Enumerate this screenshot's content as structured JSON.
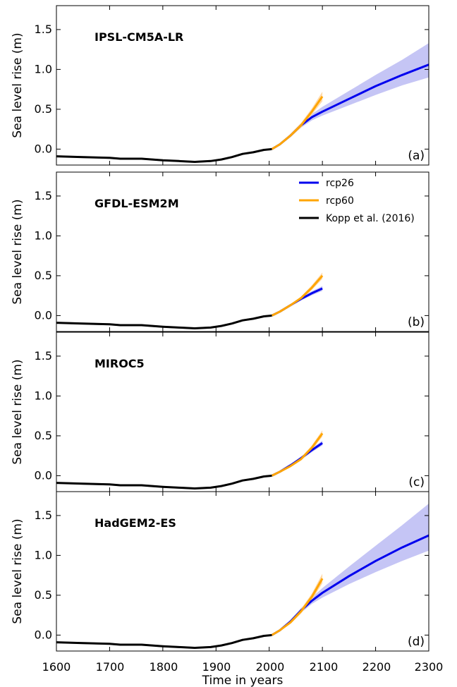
{
  "chart_data": {
    "type": "line",
    "xlabel": "Time in years",
    "ylabel": "Sea level rise (m)",
    "xlim": [
      1600,
      2300
    ],
    "ylim": [
      -0.2,
      1.8
    ],
    "x_ticks": [
      "1600",
      "1700",
      "1800",
      "1900",
      "2000",
      "2100",
      "2200",
      "2300"
    ],
    "y_ticks": [
      "0.0",
      "0.5",
      "1.0",
      "1.5"
    ],
    "colors": {
      "rcp26": "#0000ee",
      "rcp26_band": "#c5c5f5",
      "rcp60": "#ffa500",
      "rcp60_band": "#ffd9a8",
      "kopp": "#000000",
      "kopp_band": "#c8c8c8"
    },
    "legend": {
      "placement": "top-right of panel (b)",
      "entries": [
        {
          "name": "rcp26",
          "color": "#0000ee"
        },
        {
          "name": "rcp60",
          "color": "#ffa500"
        },
        {
          "name": "Kopp et al. (2016)",
          "color": "#000000"
        }
      ]
    },
    "panels": [
      {
        "title": "IPSL-CM5A-LR",
        "tag": "(a)",
        "kopp": {
          "x": [
            1600,
            1650,
            1700,
            1720,
            1760,
            1800,
            1830,
            1860,
            1890,
            1910,
            1930,
            1950,
            1970,
            1990,
            2005
          ],
          "y": [
            -0.09,
            -0.1,
            -0.11,
            -0.12,
            -0.12,
            -0.14,
            -0.15,
            -0.16,
            -0.15,
            -0.13,
            -0.1,
            -0.06,
            -0.04,
            -0.01,
            0.0
          ]
        },
        "rcp26": {
          "x": [
            2005,
            2020,
            2040,
            2060,
            2080,
            2100,
            2150,
            2200,
            2250,
            2300
          ],
          "y": [
            0.0,
            0.06,
            0.17,
            0.3,
            0.4,
            0.47,
            0.63,
            0.79,
            0.93,
            1.06
          ],
          "lower": [
            0.0,
            0.05,
            0.15,
            0.27,
            0.36,
            0.42,
            0.55,
            0.68,
            0.8,
            0.9
          ],
          "upper": [
            0.0,
            0.07,
            0.19,
            0.33,
            0.44,
            0.53,
            0.73,
            0.93,
            1.12,
            1.33
          ]
        },
        "rcp60": {
          "x": [
            2005,
            2020,
            2040,
            2060,
            2080,
            2100
          ],
          "y": [
            0.0,
            0.06,
            0.17,
            0.3,
            0.47,
            0.66
          ],
          "lower": [
            0.0,
            0.05,
            0.15,
            0.27,
            0.43,
            0.6
          ],
          "upper": [
            0.0,
            0.07,
            0.19,
            0.33,
            0.51,
            0.72
          ]
        }
      },
      {
        "title": "GFDL-ESM2M",
        "tag": "(b)",
        "kopp": {
          "x": [
            1600,
            1650,
            1700,
            1720,
            1760,
            1800,
            1830,
            1860,
            1890,
            1910,
            1930,
            1950,
            1970,
            1990,
            2005
          ],
          "y": [
            -0.09,
            -0.1,
            -0.11,
            -0.12,
            -0.12,
            -0.14,
            -0.15,
            -0.16,
            -0.15,
            -0.13,
            -0.1,
            -0.06,
            -0.04,
            -0.01,
            0.0
          ]
        },
        "rcp26": {
          "x": [
            2005,
            2020,
            2040,
            2060,
            2080,
            2100
          ],
          "y": [
            0.0,
            0.05,
            0.13,
            0.21,
            0.28,
            0.34
          ],
          "lower": [
            0.0,
            0.045,
            0.12,
            0.19,
            0.255,
            0.31
          ],
          "upper": [
            0.0,
            0.055,
            0.14,
            0.23,
            0.305,
            0.37
          ]
        },
        "rcp60": {
          "x": [
            2005,
            2020,
            2040,
            2060,
            2080,
            2100
          ],
          "y": [
            0.0,
            0.05,
            0.13,
            0.22,
            0.35,
            0.5
          ],
          "lower": [
            0.0,
            0.045,
            0.12,
            0.2,
            0.32,
            0.46
          ],
          "upper": [
            0.0,
            0.055,
            0.14,
            0.24,
            0.38,
            0.54
          ]
        }
      },
      {
        "title": "MIROC5",
        "tag": "(c)",
        "kopp": {
          "x": [
            1600,
            1650,
            1700,
            1720,
            1760,
            1800,
            1830,
            1860,
            1890,
            1910,
            1930,
            1950,
            1970,
            1990,
            2005
          ],
          "y": [
            -0.09,
            -0.1,
            -0.11,
            -0.12,
            -0.12,
            -0.14,
            -0.15,
            -0.16,
            -0.15,
            -0.13,
            -0.1,
            -0.06,
            -0.04,
            -0.01,
            0.0
          ]
        },
        "rcp26": {
          "x": [
            2005,
            2020,
            2040,
            2060,
            2080,
            2100
          ],
          "y": [
            0.0,
            0.05,
            0.13,
            0.22,
            0.32,
            0.41
          ],
          "lower": [
            0.0,
            0.045,
            0.12,
            0.2,
            0.295,
            0.38
          ],
          "upper": [
            0.0,
            0.055,
            0.14,
            0.24,
            0.345,
            0.44
          ]
        },
        "rcp60": {
          "x": [
            2005,
            2020,
            2040,
            2060,
            2080,
            2100
          ],
          "y": [
            0.0,
            0.05,
            0.12,
            0.21,
            0.35,
            0.53
          ],
          "lower": [
            0.0,
            0.045,
            0.11,
            0.19,
            0.32,
            0.49
          ],
          "upper": [
            0.0,
            0.055,
            0.13,
            0.23,
            0.38,
            0.57
          ]
        }
      },
      {
        "title": "HadGEM2-ES",
        "tag": "(d)",
        "kopp": {
          "x": [
            1600,
            1650,
            1700,
            1720,
            1760,
            1800,
            1830,
            1860,
            1890,
            1910,
            1930,
            1950,
            1970,
            1990,
            2005
          ],
          "y": [
            -0.09,
            -0.1,
            -0.11,
            -0.12,
            -0.12,
            -0.14,
            -0.15,
            -0.16,
            -0.15,
            -0.13,
            -0.1,
            -0.06,
            -0.04,
            -0.01,
            0.0
          ]
        },
        "rcp26": {
          "x": [
            2005,
            2020,
            2040,
            2060,
            2080,
            2100,
            2150,
            2200,
            2250,
            2300
          ],
          "y": [
            0.0,
            0.06,
            0.17,
            0.31,
            0.43,
            0.53,
            0.74,
            0.93,
            1.1,
            1.25
          ],
          "lower": [
            0.0,
            0.05,
            0.15,
            0.28,
            0.39,
            0.47,
            0.64,
            0.79,
            0.93,
            1.06
          ],
          "upper": [
            0.0,
            0.07,
            0.19,
            0.34,
            0.47,
            0.59,
            0.86,
            1.12,
            1.38,
            1.65
          ]
        },
        "rcp60": {
          "x": [
            2005,
            2020,
            2040,
            2060,
            2080,
            2100
          ],
          "y": [
            0.0,
            0.06,
            0.16,
            0.3,
            0.48,
            0.71
          ],
          "lower": [
            0.0,
            0.05,
            0.14,
            0.27,
            0.44,
            0.65
          ],
          "upper": [
            0.0,
            0.07,
            0.18,
            0.33,
            0.52,
            0.77
          ]
        }
      }
    ]
  }
}
